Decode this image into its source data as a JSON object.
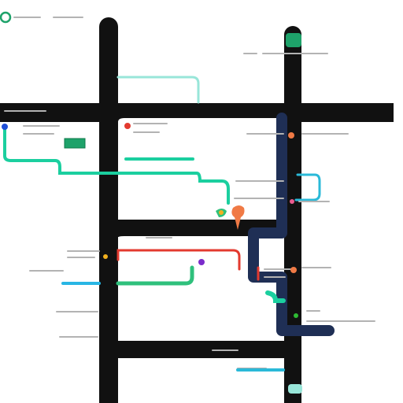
{
  "map": {
    "colors": {
      "background": "#ffffff",
      "road": "#111111",
      "route_navy": "#1f2f55",
      "route_teal": "#1bcf9f",
      "route_mint": "#98e6d9",
      "route_cyan": "#2ab9d8",
      "route_red": "#e33a2f",
      "route_green": "#2fc07c",
      "route_orange": "#f07a45",
      "top_green": "#1ea26a"
    },
    "markers": [
      {
        "name": "blue-pin-icon",
        "color": "#1f4fd8"
      },
      {
        "name": "red-pin-icon",
        "color": "#e33a2f"
      },
      {
        "name": "orange-dot-icon",
        "color": "#f07a45"
      },
      {
        "name": "pink-dot-icon",
        "color": "#ea5c90"
      },
      {
        "name": "purple-dot-icon",
        "color": "#7b2ccb"
      },
      {
        "name": "yellow-dot-icon",
        "color": "#f2b01e"
      },
      {
        "name": "green-dot-icon",
        "color": "#2dbb33"
      }
    ],
    "icons": {
      "logo": "compass-ring-icon",
      "top_bar_left": "menu-icon",
      "top_bar_right": "search-icon"
    }
  }
}
